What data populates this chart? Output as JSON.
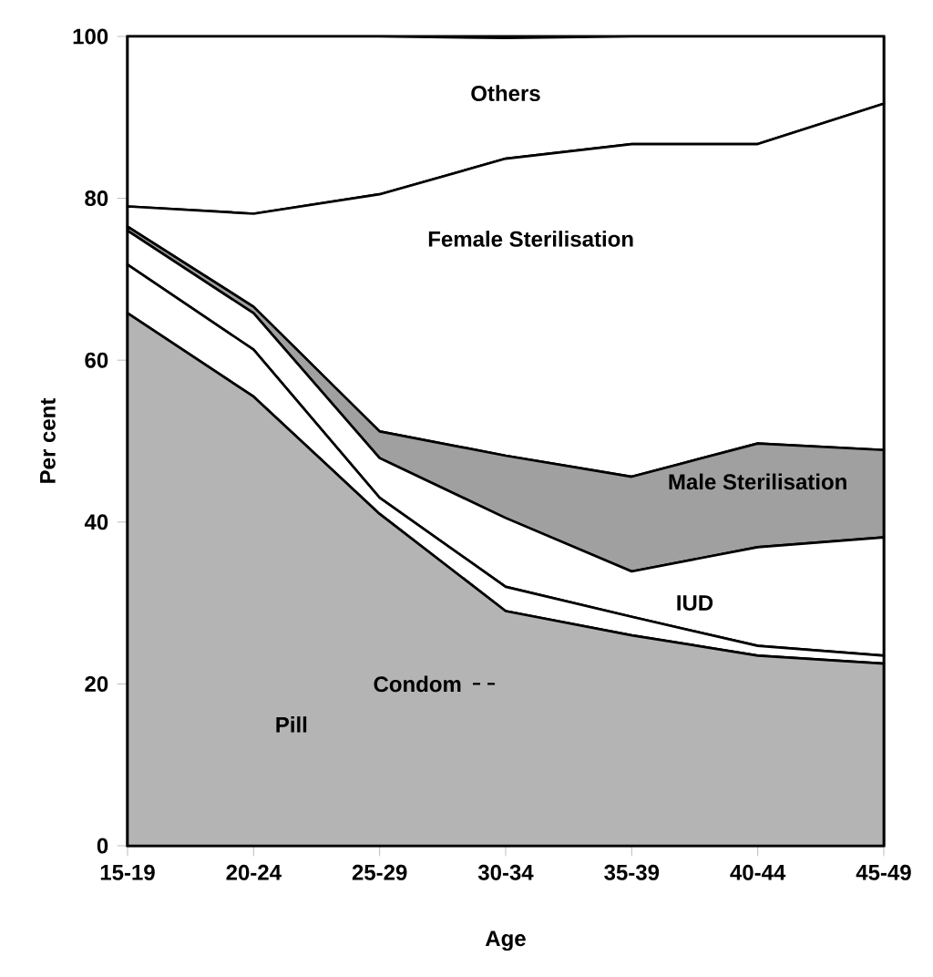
{
  "chart_data": {
    "type": "area",
    "stacked": true,
    "xlabel": "Age",
    "ylabel": "Per cent",
    "categories": [
      "15-19",
      "20-24",
      "25-29",
      "30-34",
      "35-39",
      "40-44",
      "45-49"
    ],
    "ylim": [
      0,
      100
    ],
    "yticks": [
      0,
      20,
      40,
      60,
      80,
      100
    ],
    "series": [
      {
        "name": "Pill",
        "color": "#b4b4b4",
        "values": [
          65.8,
          55.5,
          41,
          29,
          26,
          23.5,
          22.5
        ]
      },
      {
        "name": "Condom",
        "color": "#ffffff",
        "values": [
          6,
          5.8,
          2,
          3,
          2.3,
          1.2,
          1
        ]
      },
      {
        "name": "IUD",
        "color": "#ffffff",
        "values": [
          4.2,
          4.5,
          4.9,
          8.5,
          5.6,
          12.2,
          14.6
        ]
      },
      {
        "name": "Male Sterilisation",
        "color": "#a0a0a0",
        "values": [
          0.5,
          0.8,
          3.3,
          7.7,
          11.7,
          12.8,
          10.8
        ]
      },
      {
        "name": "Female Sterilisation",
        "color": "#ffffff",
        "values": [
          2.5,
          11.5,
          29.3,
          36.7,
          41.1,
          37,
          42.8
        ]
      },
      {
        "name": "Others",
        "color": "#ffffff",
        "values": [
          21,
          21.9,
          19.5,
          14.9,
          13.3,
          13.3,
          8.3
        ]
      }
    ]
  }
}
